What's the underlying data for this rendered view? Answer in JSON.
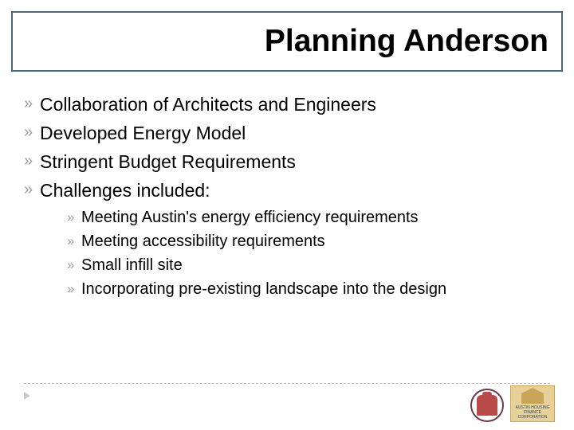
{
  "title": "Planning Anderson",
  "title_box_border_color": "#4a6a7a",
  "main_bullets": [
    "Collaboration of Architects and Engineers",
    "Developed Energy Model",
    "Stringent Budget Requirements",
    "Challenges included:"
  ],
  "sub_bullets": [
    "Meeting Austin's energy efficiency requirements",
    "Meeting accessibility requirements",
    "Small infill site",
    "Incorporating pre-existing landscape into the design"
  ],
  "bullet_glyph": "»",
  "colors": {
    "background": "#ffffff",
    "text": "#000000",
    "bullet": "#9c9c9c",
    "title_border": "#4a6a7a",
    "divider": "#b8b8b8"
  },
  "logos": {
    "logo1_label": "city-seal",
    "logo2_label": "ahfc",
    "logo2_caption": "AUSTIN HOUSING FINANCE CORPORATION"
  }
}
